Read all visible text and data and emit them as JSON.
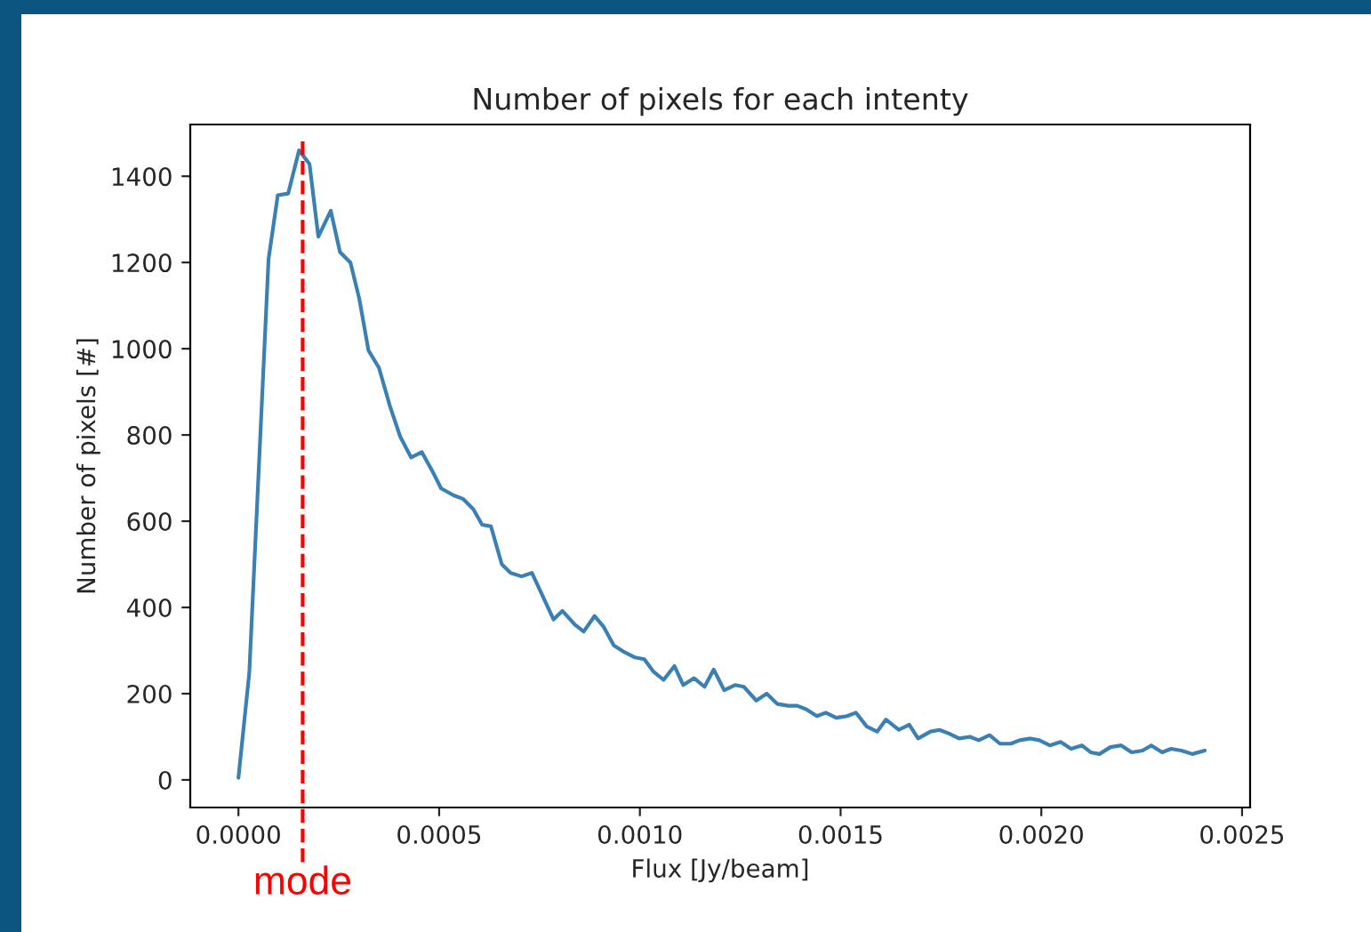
{
  "chart_data": {
    "type": "line",
    "title": "Number of pixels for each intenty",
    "xlabel": "Flux [Jy/beam]",
    "ylabel": "Number of pixels [#]",
    "x": [
      0,
      2.7e-05,
      7.5e-05,
      9.8e-05,
      0.000124,
      0.000151,
      0.000177,
      0.000199,
      0.00023,
      0.000253,
      0.000279,
      0.000301,
      0.000324,
      0.00035,
      0.000377,
      0.000403,
      0.00043,
      0.000457,
      0.000483,
      0.000505,
      0.000536,
      0.000559,
      0.000585,
      0.000607,
      0.000629,
      0.000656,
      0.000678,
      0.000705,
      0.000731,
      0.000785,
      0.000807,
      0.000838,
      0.00086,
      0.000887,
      0.000909,
      0.000935,
      0.000962,
      0.000988,
      0.001011,
      0.001033,
      0.001059,
      0.001086,
      0.001108,
      0.001135,
      0.001161,
      0.001184,
      0.00121,
      0.001237,
      0.001259,
      0.00129,
      0.001316,
      0.001343,
      0.00137,
      0.001392,
      0.001414,
      0.001441,
      0.001463,
      0.001489,
      0.001516,
      0.001538,
      0.001565,
      0.001591,
      0.001613,
      0.001645,
      0.001671,
      0.001693,
      0.001724,
      0.001746,
      0.001769,
      0.001795,
      0.001822,
      0.001844,
      0.001871,
      0.001897,
      0.001924,
      0.001946,
      0.001973,
      0.001995,
      0.002021,
      0.002048,
      0.002074,
      0.002101,
      0.002123,
      0.002145,
      0.002172,
      0.002199,
      0.002225,
      0.002252,
      0.002274,
      0.002301,
      0.002323,
      0.002349,
      0.002376,
      0.002407
    ],
    "series": [
      {
        "color": "#3a80b5",
        "values": [
          5,
          248,
          1208,
          1356,
          1360,
          1460,
          1428,
          1260,
          1320,
          1224,
          1200,
          1116,
          996,
          956,
          868,
          796,
          748,
          760,
          716,
          676,
          660,
          652,
          628,
          592,
          588,
          500,
          480,
          472,
          480,
          372,
          392,
          360,
          344,
          380,
          356,
          312,
          296,
          284,
          280,
          252,
          232,
          264,
          220,
          236,
          216,
          256,
          208,
          220,
          216,
          184,
          200,
          176,
          172,
          172,
          164,
          148,
          156,
          144,
          148,
          156,
          124,
          112,
          140,
          116,
          128,
          96,
          112,
          116,
          108,
          96,
          100,
          92,
          104,
          84,
          84,
          92,
          96,
          92,
          80,
          88,
          72,
          80,
          64,
          60,
          76,
          80,
          64,
          68,
          80,
          64,
          72,
          68,
          60,
          68
        ]
      }
    ],
    "xlim": [
      -0.00012,
      0.00252
    ],
    "xticks": [
      {
        "value": 0,
        "label": "0.0000"
      },
      {
        "value": 0.0005,
        "label": "0.0005"
      },
      {
        "value": 0.001,
        "label": "0.0010"
      },
      {
        "value": 0.0015,
        "label": "0.0015"
      },
      {
        "value": 0.002,
        "label": "0.0020"
      },
      {
        "value": 0.0025,
        "label": "0.0025"
      }
    ],
    "ylim": [
      -64,
      1520
    ],
    "yticks": [
      0,
      200,
      400,
      600,
      800,
      1000,
      1200,
      1400
    ],
    "ref_lines": [
      {
        "axis": "x",
        "value": 0.00016,
        "label": "mode",
        "color": "#ff0000",
        "line_style": "dashed"
      }
    ],
    "grid": false,
    "legend": false
  }
}
